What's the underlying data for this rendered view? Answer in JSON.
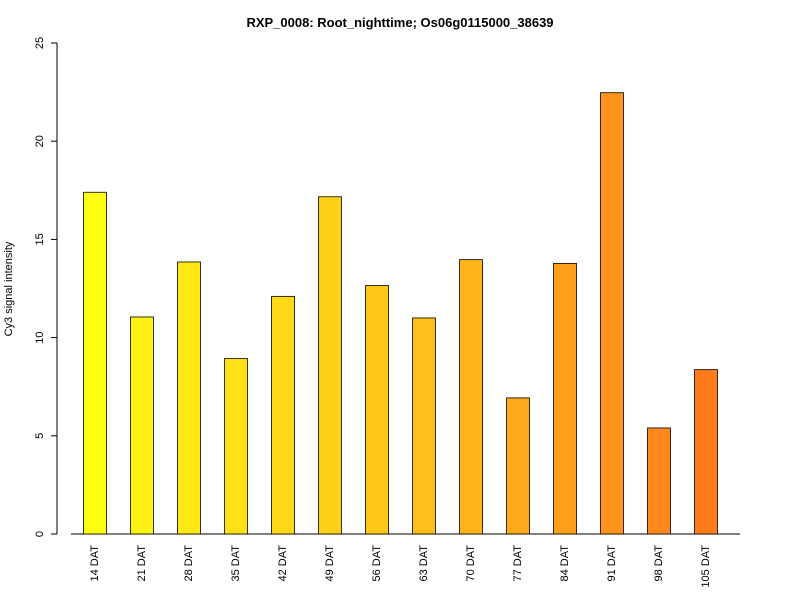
{
  "chart_data": {
    "type": "bar",
    "title": "RXP_0008: Root_nighttime; Os06g0115000_38639",
    "xlabel": "",
    "ylabel": "Cy3 signal intensity",
    "ylim": [
      0,
      25
    ],
    "yticks": [
      "0",
      "5",
      "10",
      "15",
      "20",
      "25"
    ],
    "grid": false,
    "categories": [
      "14 DAT",
      "21 DAT",
      "28 DAT",
      "35 DAT",
      "42 DAT",
      "49 DAT",
      "56 DAT",
      "63 DAT",
      "70 DAT",
      "77 DAT",
      "84 DAT",
      "91 DAT",
      "98 DAT",
      "105 DAT"
    ],
    "values": [
      17.4,
      11.05,
      13.85,
      8.93,
      12.1,
      17.17,
      12.65,
      11.0,
      13.97,
      6.93,
      13.78,
      22.47,
      5.4,
      8.37
    ],
    "colors": [
      "#FFFF14",
      "#FFF015",
      "#FFE816",
      "#FFE016",
      "#FFD817",
      "#FFD018",
      "#FFC718",
      "#FFBE19",
      "#FFB419",
      "#FFA91A",
      "#FF9E1A",
      "#FF931B",
      "#FF871B",
      "#FF7B1C"
    ]
  }
}
